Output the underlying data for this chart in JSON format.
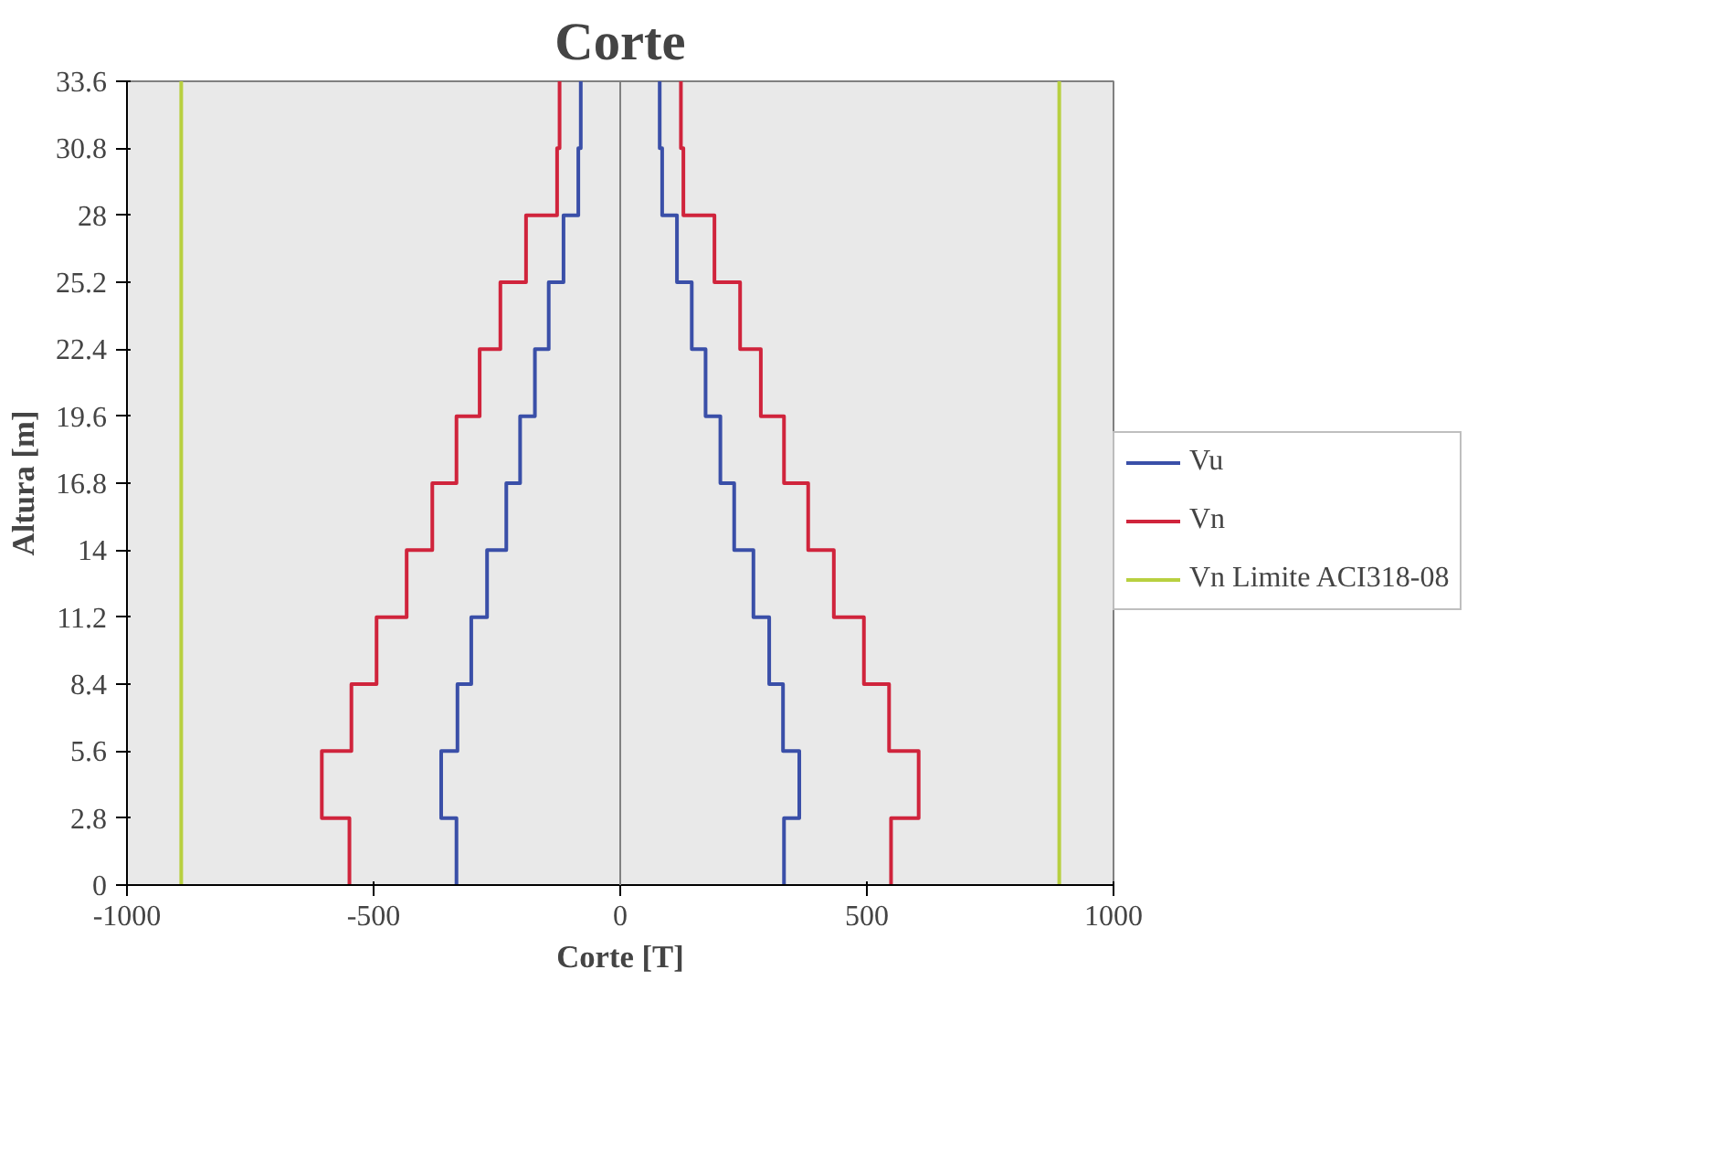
{
  "chart_data": {
    "type": "line",
    "title": "Corte",
    "xlabel": "Corte [T]",
    "ylabel": "Altura [m]",
    "xlim": [
      -1000,
      1000
    ],
    "xticks": [
      -1000,
      -500,
      0,
      500,
      1000
    ],
    "ylim": [
      0,
      33.6
    ],
    "yticks": [
      0,
      2.8,
      5.6,
      8.4,
      11.2,
      14,
      16.8,
      19.6,
      22.4,
      25.2,
      28,
      30.8,
      33.6
    ],
    "grid": false,
    "legend": "right",
    "marker": "none",
    "line_style": "solid",
    "ref_lines": [
      {
        "axis": "x",
        "value": 0,
        "color": "#808080"
      }
    ],
    "series": [
      {
        "name": "Vu",
        "color": "#3a4fa8",
        "x": [
          332,
          332,
          363,
          363,
          330,
          330,
          302,
          302,
          270,
          270,
          231,
          231,
          203,
          203,
          173,
          173,
          145,
          145,
          115,
          115,
          85,
          85,
          80,
          80,
          null,
          -332,
          -332,
          -363,
          -363,
          -330,
          -330,
          -302,
          -302,
          -270,
          -270,
          -231,
          -231,
          -203,
          -203,
          -173,
          -173,
          -145,
          -145,
          -115,
          -115,
          -85,
          -85,
          -80,
          -80
        ],
        "values": [
          0,
          2.8,
          2.8,
          5.6,
          5.6,
          8.4,
          8.4,
          11.2,
          11.2,
          14,
          14,
          16.8,
          16.8,
          19.6,
          19.6,
          22.4,
          22.4,
          25.2,
          25.2,
          28,
          28,
          30.8,
          30.8,
          33.6,
          null,
          0,
          2.8,
          2.8,
          5.6,
          5.6,
          8.4,
          8.4,
          11.2,
          11.2,
          14,
          14,
          16.8,
          16.8,
          19.6,
          19.6,
          22.4,
          22.4,
          25.2,
          25.2,
          28,
          28,
          30.8,
          30.8,
          33.6
        ]
      },
      {
        "name": "Vn",
        "color": "#d0243c",
        "x": [
          549,
          549,
          605,
          605,
          545,
          545,
          494,
          494,
          433,
          433,
          381,
          381,
          332,
          332,
          285,
          285,
          243,
          243,
          191,
          191,
          128,
          128,
          123,
          123,
          null,
          -549,
          -549,
          -605,
          -605,
          -545,
          -545,
          -494,
          -494,
          -433,
          -433,
          -381,
          -381,
          -332,
          -332,
          -285,
          -285,
          -243,
          -243,
          -191,
          -191,
          -128,
          -128,
          -123,
          -123
        ],
        "values": [
          0,
          2.8,
          2.8,
          5.6,
          5.6,
          8.4,
          8.4,
          11.2,
          11.2,
          14,
          14,
          16.8,
          16.8,
          19.6,
          19.6,
          22.4,
          22.4,
          25.2,
          25.2,
          28,
          28,
          30.8,
          30.8,
          33.6,
          null,
          0,
          2.8,
          2.8,
          5.6,
          5.6,
          8.4,
          8.4,
          11.2,
          11.2,
          14,
          14,
          16.8,
          16.8,
          19.6,
          19.6,
          22.4,
          22.4,
          25.2,
          25.2,
          28,
          28,
          30.8,
          30.8,
          33.6
        ]
      },
      {
        "name": "Vn Limite ACI318-08",
        "color": "#b8d040",
        "x": [
          890,
          890,
          null,
          -890,
          -890
        ],
        "values": [
          0,
          33.6,
          null,
          0,
          33.6
        ]
      }
    ]
  }
}
